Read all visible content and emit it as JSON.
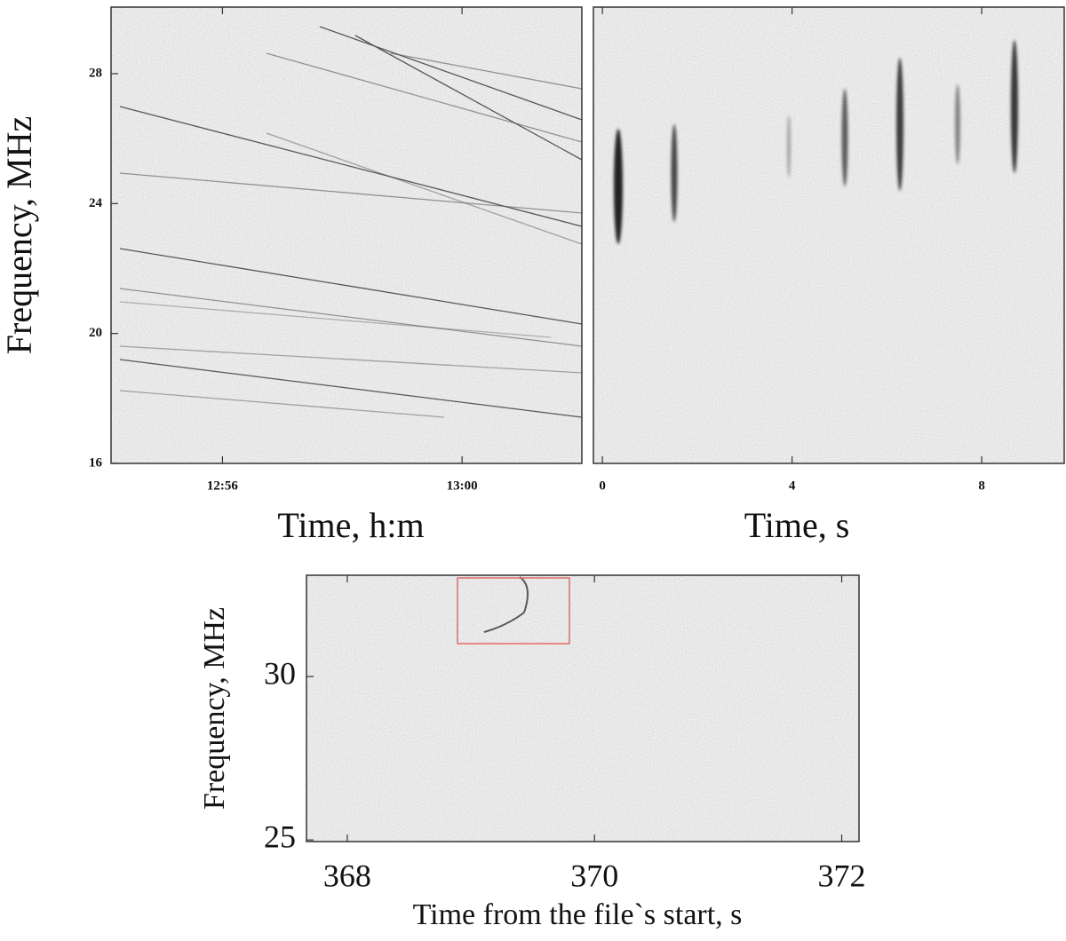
{
  "chart_data": [
    {
      "type": "spectrogram",
      "x_label": "Time, h:m",
      "y_label": "Frequency, MHz",
      "xlim": [
        774.14,
        782.0
      ],
      "xticks": [
        {
          "value": 776,
          "label": "12:56"
        },
        {
          "value": 780,
          "label": "13:00"
        }
      ],
      "ylim": [
        16,
        30.05
      ],
      "yticks": [
        16,
        20,
        24,
        28
      ]
    },
    {
      "type": "spectrogram",
      "x_label": "Time, s",
      "xlim": [
        -0.19,
        9.74
      ],
      "xticks": [
        0,
        4,
        8
      ],
      "ylim": [
        16,
        30.05
      ]
    },
    {
      "type": "spectrogram",
      "x_label": "Time from the file`s start, s",
      "y_label": "Frequency, MHz",
      "xlim": [
        367.67,
        372.14
      ],
      "xticks": [
        368,
        370,
        372
      ],
      "ylim": [
        24.95,
        33.1
      ],
      "yticks": [
        25,
        30
      ]
    }
  ]
}
